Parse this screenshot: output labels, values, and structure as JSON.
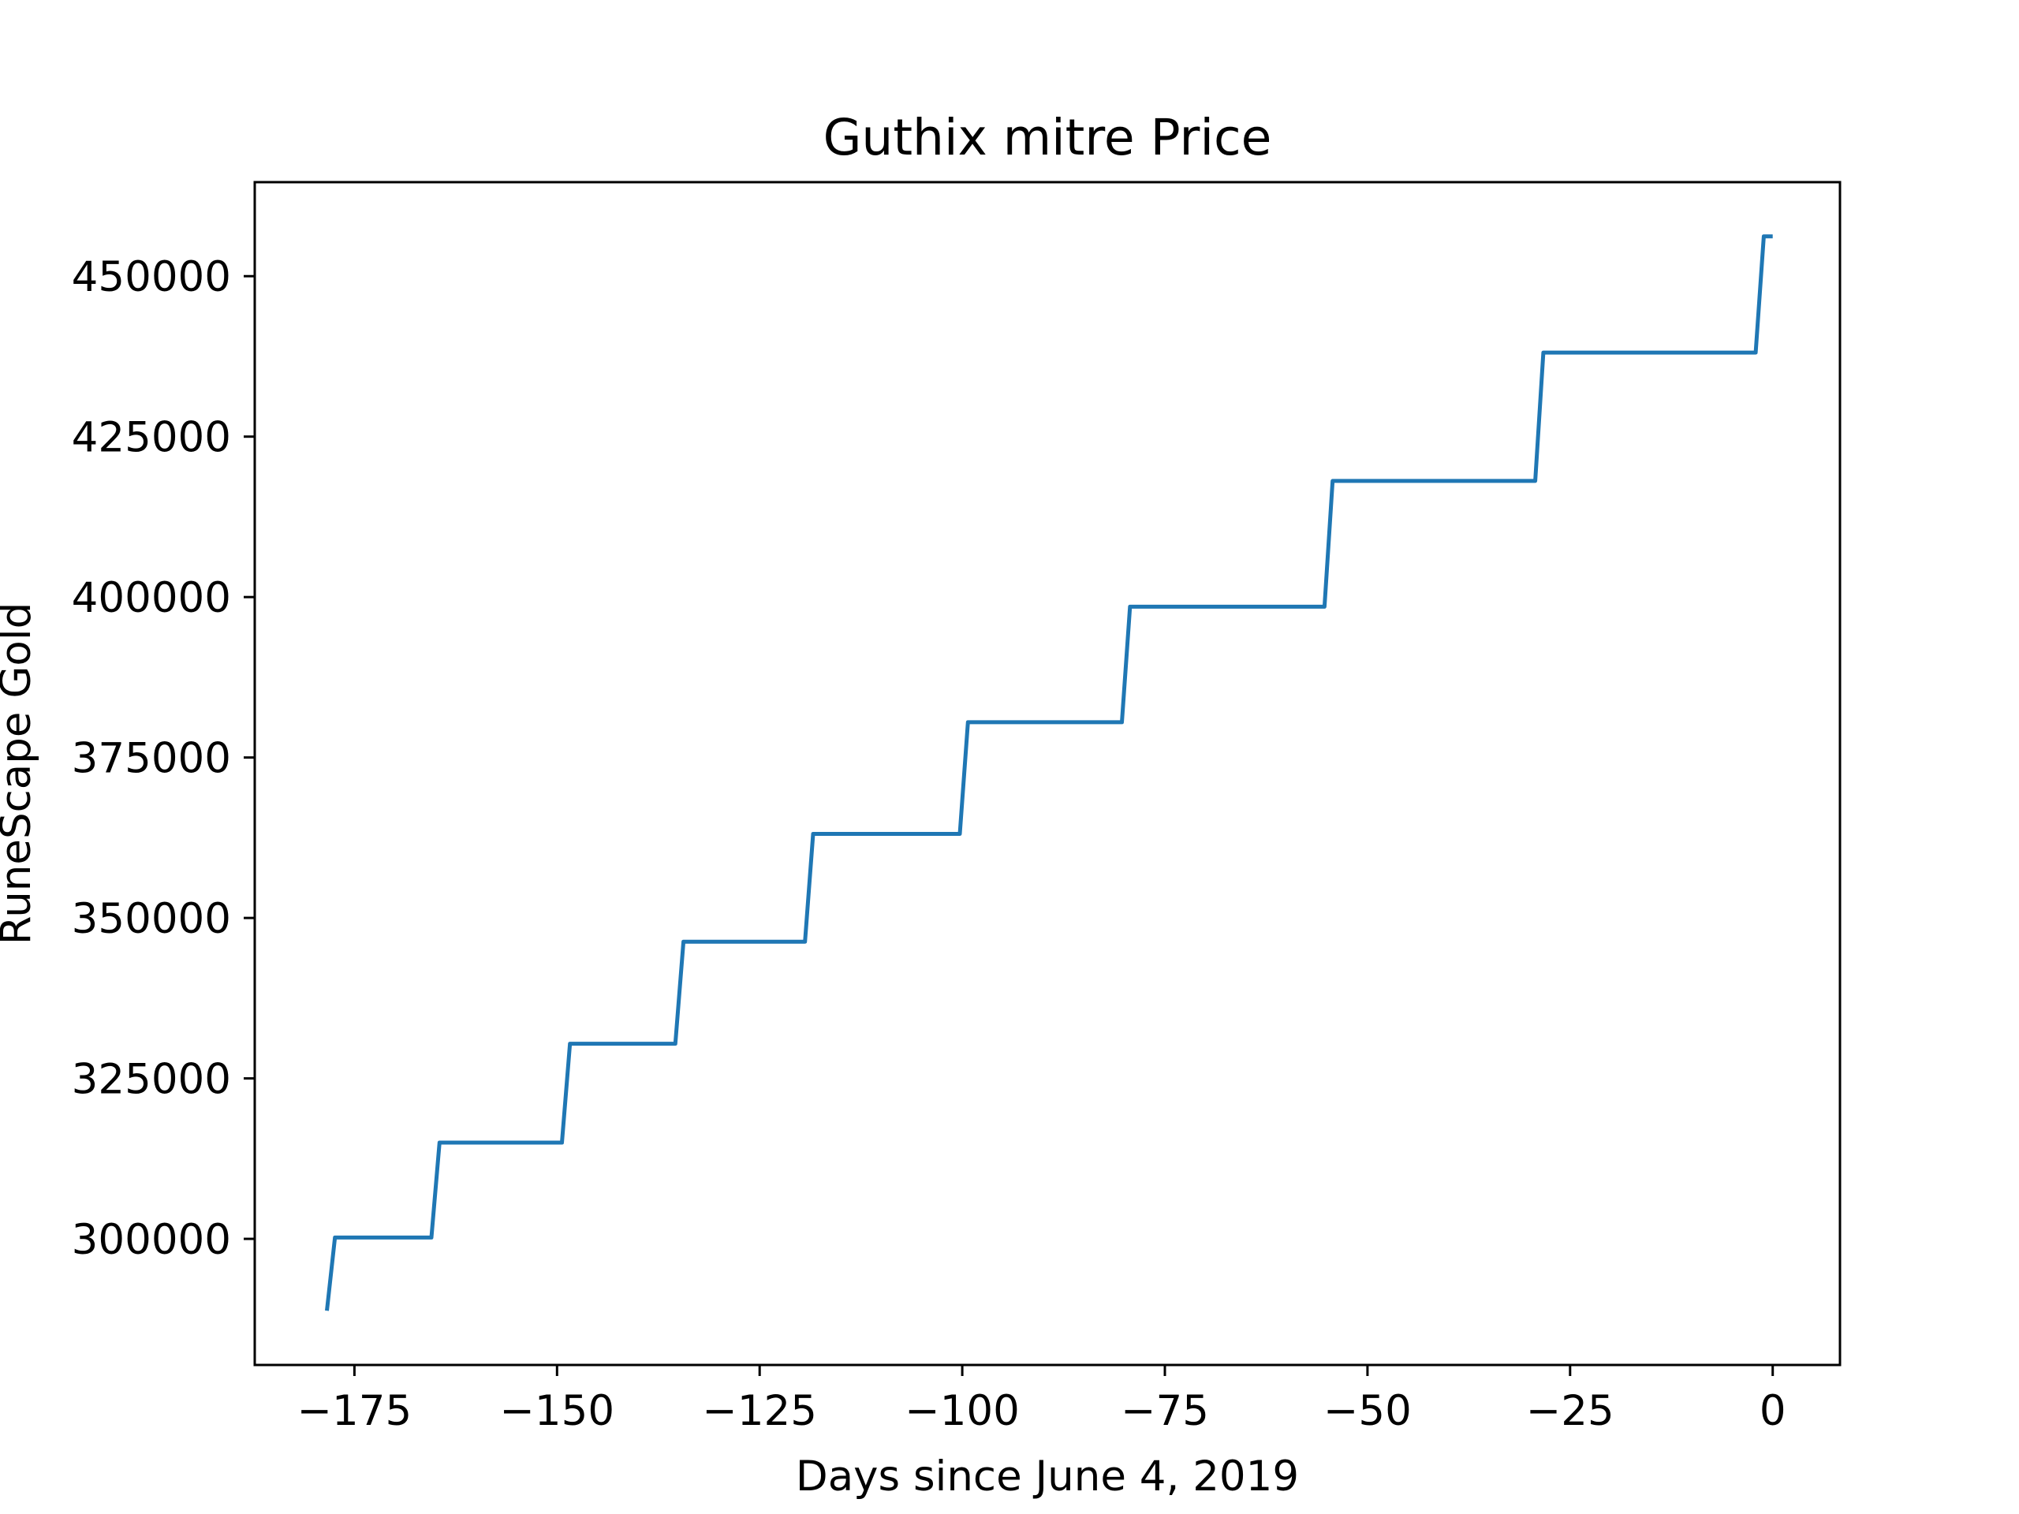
{
  "chart_data": {
    "type": "line",
    "title": "Guthix mitre Price",
    "xlabel": "Days since June 4, 2019",
    "ylabel": "RuneScape Gold",
    "xlim": [
      -187.3,
      8.3
    ],
    "ylim": [
      280350,
      464650
    ],
    "x_ticks": [
      -175,
      -150,
      -125,
      -100,
      -75,
      -50,
      -25,
      0
    ],
    "x_tick_labels": [
      "−175",
      "−150",
      "−125",
      "−100",
      "−75",
      "−50",
      "−25",
      "0"
    ],
    "y_ticks": [
      300000,
      325000,
      350000,
      375000,
      400000,
      425000,
      450000
    ],
    "y_tick_labels": [
      "300000",
      "325000",
      "350000",
      "375000",
      "400000",
      "425000",
      "450000"
    ],
    "grid": false,
    "series": [
      {
        "color": "#1f77b4",
        "x": [
          -178.4,
          -177.4,
          -165.5,
          -164.5,
          -149.4,
          -148.4,
          -135.4,
          -134.4,
          -119.4,
          -118.4,
          -100.3,
          -99.3,
          -80.3,
          -79.3,
          -55.3,
          -54.3,
          -29.3,
          -28.3,
          -2.1,
          -1.1,
          0.0
        ],
        "y": [
          288800,
          300200,
          300200,
          315000,
          315000,
          330400,
          330400,
          346300,
          346300,
          363100,
          363100,
          380500,
          380500,
          398500,
          398500,
          418100,
          418100,
          438100,
          438100,
          456200,
          456200
        ]
      }
    ]
  }
}
